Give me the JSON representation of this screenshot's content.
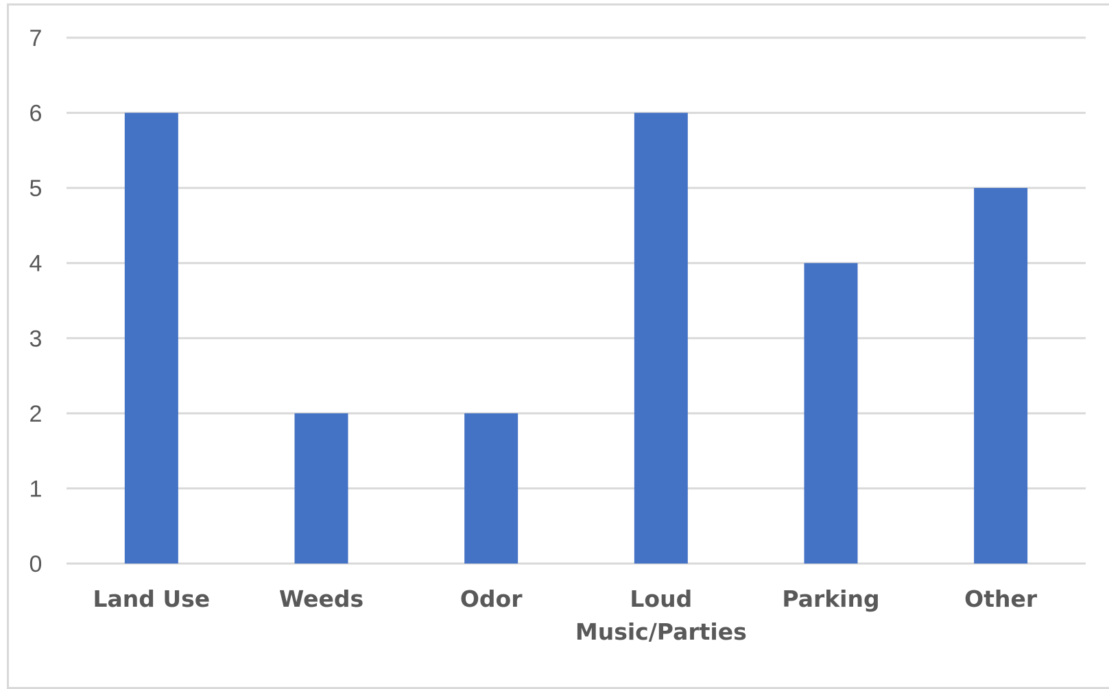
{
  "chart_data": {
    "type": "bar",
    "categories": [
      "Land Use",
      "Weeds",
      "Odor",
      "Loud Music/Parties",
      "Parking",
      "Other"
    ],
    "category_lines": [
      [
        "Land Use"
      ],
      [
        "Weeds"
      ],
      [
        "Odor"
      ],
      [
        "Loud",
        "Music/Parties"
      ],
      [
        "Parking"
      ],
      [
        "Other"
      ]
    ],
    "values": [
      6,
      2,
      2,
      6,
      4,
      5
    ],
    "ylim": [
      0,
      7
    ],
    "yticks": [
      "0",
      "1",
      "2",
      "3",
      "4",
      "5",
      "6",
      "7"
    ],
    "grid": true,
    "legend": "none",
    "bar_color": "#4472c4",
    "grid_color": "#d9d9d9",
    "label_color": "#595959"
  }
}
